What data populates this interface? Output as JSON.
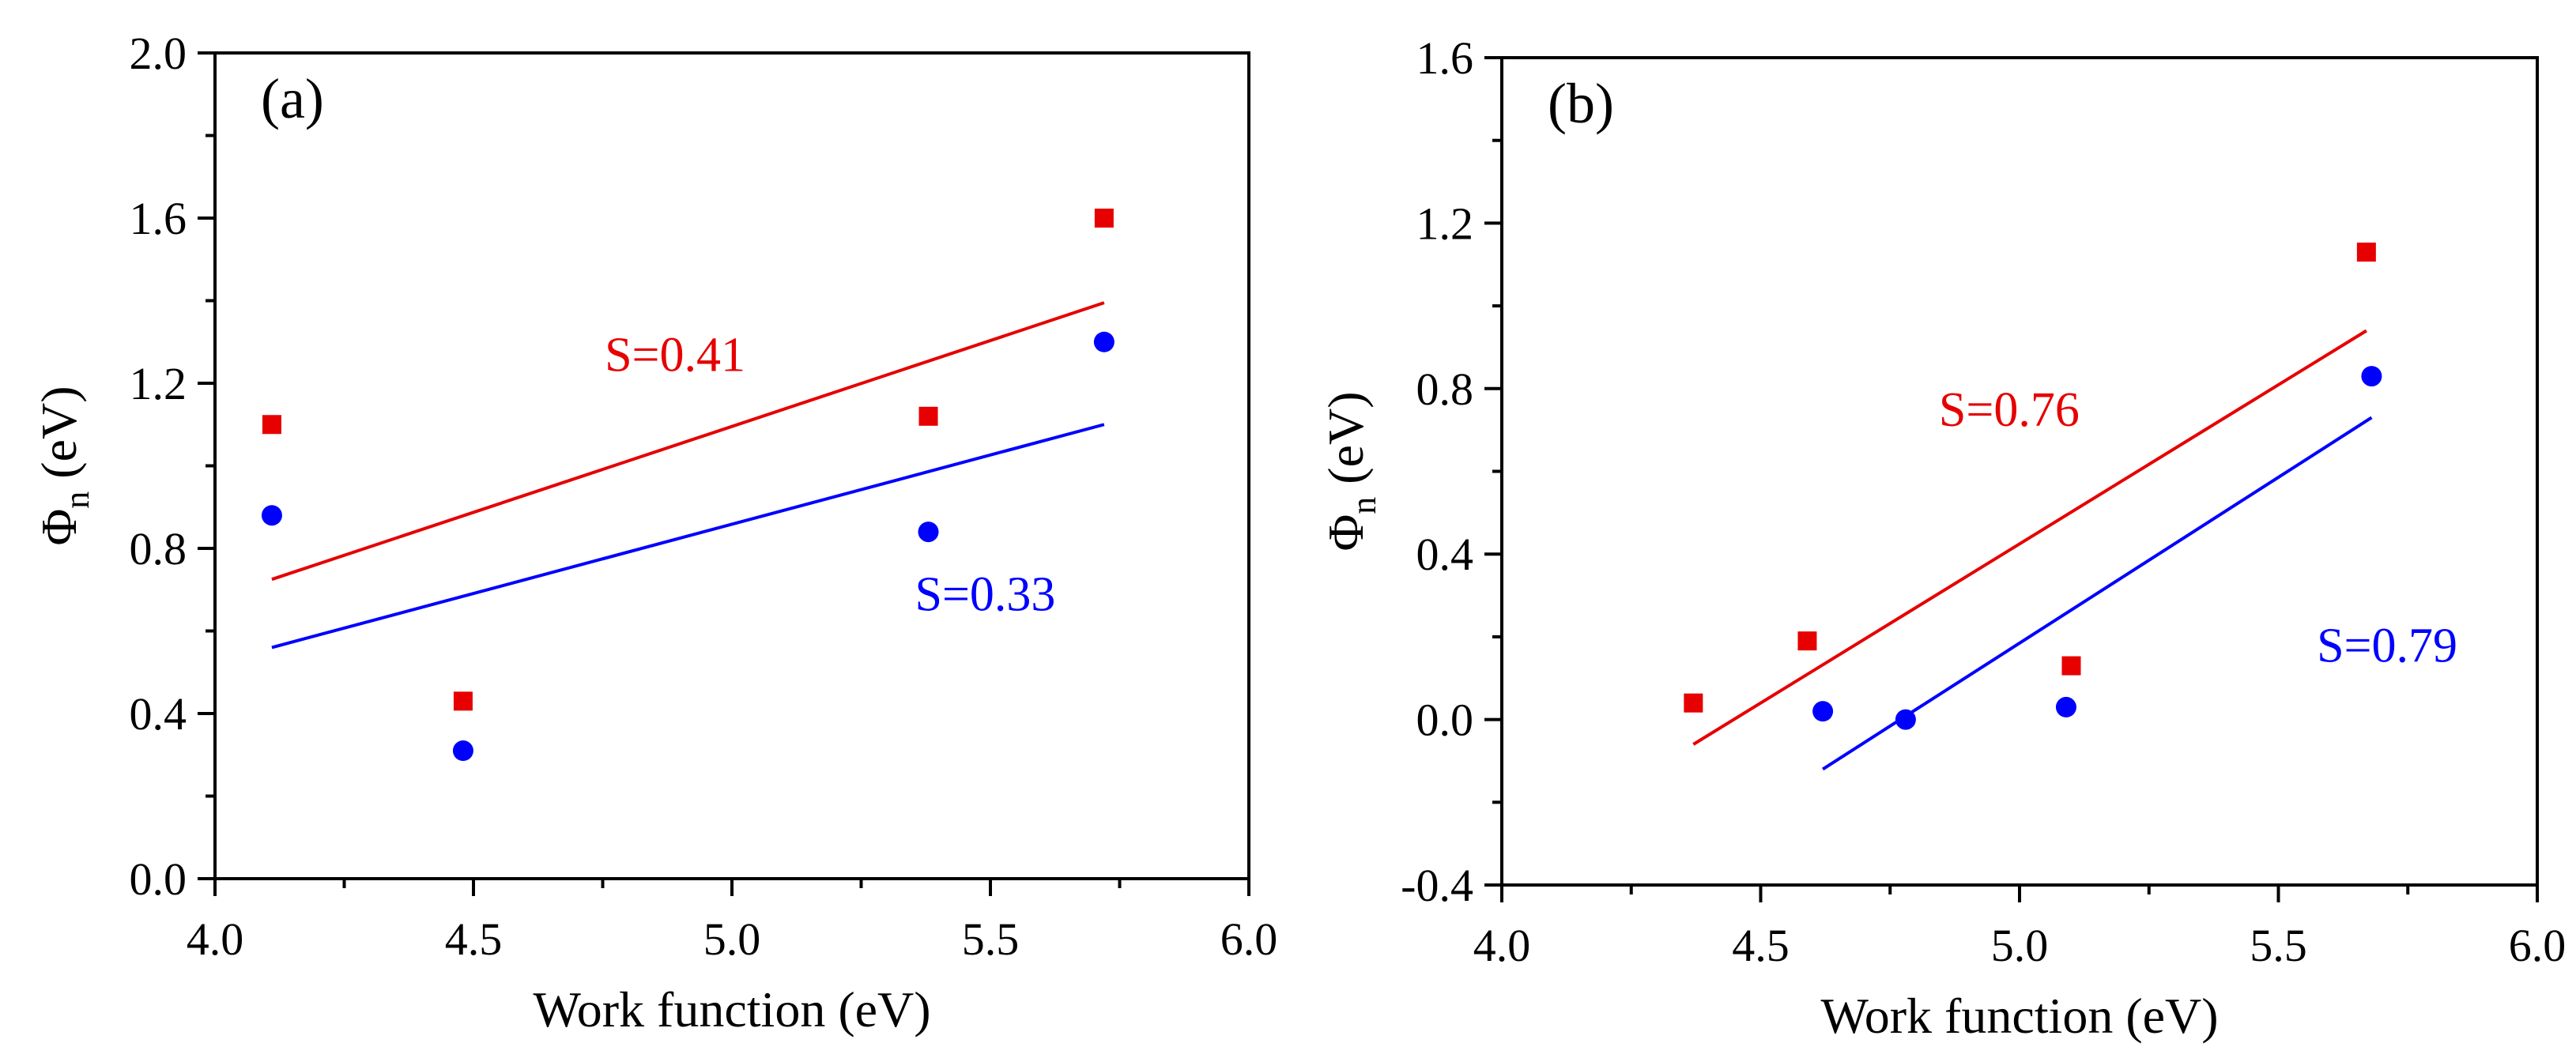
{
  "chart_data": [
    {
      "type": "scatter",
      "panel_label": "(a)",
      "xlabel": "Work function (eV)",
      "ylabel_main": "Φ",
      "ylabel_sub": "n",
      "ylabel_unit": " (eV)",
      "xlim": [
        4.0,
        6.0
      ],
      "ylim": [
        0.0,
        2.0
      ],
      "xticks": [
        "4.0",
        "4.5",
        "5.0",
        "5.5",
        "6.0"
      ],
      "yticks": [
        "0.0",
        "0.4",
        "0.8",
        "1.2",
        "1.6",
        "2.0"
      ],
      "series": [
        {
          "name": "red-squares",
          "color": "#e60000",
          "marker": "square",
          "x": [
            4.11,
            4.48,
            5.38,
            5.72
          ],
          "y": [
            1.1,
            0.43,
            1.12,
            1.6
          ],
          "fit": {
            "x": [
              4.11,
              5.72
            ],
            "y": [
              0.725,
              1.395
            ]
          },
          "label": "S=0.41",
          "label_pos": [
            4.89,
            1.23
          ]
        },
        {
          "name": "blue-circles",
          "color": "#0000ff",
          "marker": "circle",
          "x": [
            4.11,
            4.48,
            5.38,
            5.72
          ],
          "y": [
            0.88,
            0.31,
            0.84,
            1.3
          ],
          "fit": {
            "x": [
              4.11,
              5.72
            ],
            "y": [
              0.56,
              1.1
            ]
          },
          "label": "S=0.33",
          "label_pos": [
            5.49,
            0.65
          ]
        }
      ]
    },
    {
      "type": "scatter",
      "panel_label": "(b)",
      "xlabel": "Work function (eV)",
      "ylabel_main": "Φ",
      "ylabel_sub": "n",
      "ylabel_unit": " (eV)",
      "xlim": [
        4.0,
        6.0
      ],
      "ylim": [
        -0.4,
        1.6
      ],
      "xticks": [
        "4.0",
        "4.5",
        "5.0",
        "5.5",
        "6.0"
      ],
      "yticks": [
        "-0.4",
        "0.0",
        "0.4",
        "0.8",
        "1.2",
        "1.6"
      ],
      "series": [
        {
          "name": "red-squares",
          "color": "#e60000",
          "marker": "square",
          "x": [
            4.37,
            4.59,
            5.1,
            5.67
          ],
          "y": [
            0.04,
            0.19,
            0.13,
            1.13
          ],
          "fit": {
            "x": [
              4.37,
              5.67
            ],
            "y": [
              -0.06,
              0.94
            ]
          },
          "label": "S=0.76",
          "label_pos": [
            4.98,
            0.71
          ]
        },
        {
          "name": "blue-circles",
          "color": "#0000ff",
          "marker": "circle",
          "x": [
            4.62,
            4.78,
            5.09,
            5.68
          ],
          "y": [
            0.02,
            0.0,
            0.03,
            0.83
          ],
          "fit": {
            "x": [
              4.62,
              5.68
            ],
            "y": [
              -0.12,
              0.73
            ]
          },
          "label": "S=0.79",
          "label_pos": [
            5.71,
            0.14
          ]
        }
      ]
    }
  ]
}
